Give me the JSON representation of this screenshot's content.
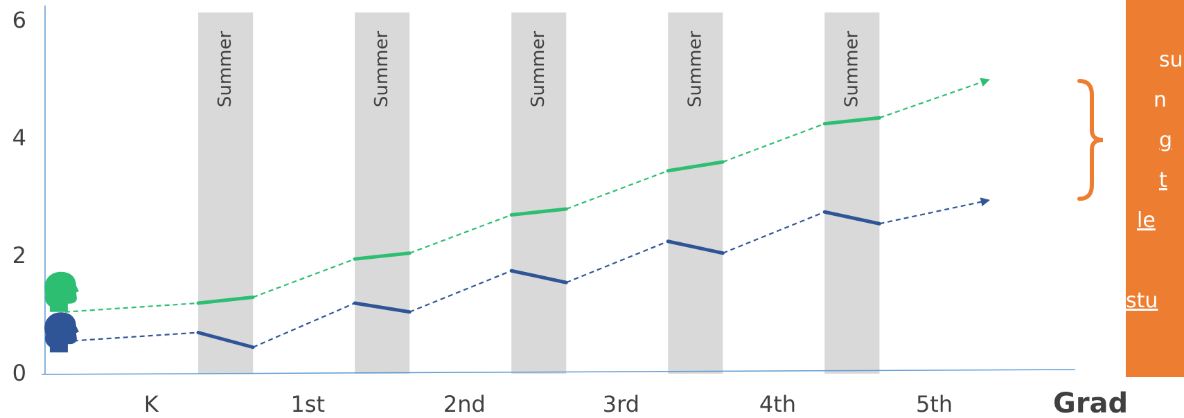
{
  "chart_data": {
    "type": "line",
    "title": "",
    "xlabel": "Grade",
    "ylabel": "",
    "ylim": [
      0,
      6
    ],
    "y_ticks": [
      "0",
      "2",
      "4",
      "6"
    ],
    "categories": [
      "K",
      "1st",
      "2nd",
      "3rd",
      "4th",
      "5th"
    ],
    "band_label": "Summer",
    "summer_bands": [
      {
        "label": "Summer"
      },
      {
        "label": "Summer"
      },
      {
        "label": "Summer"
      },
      {
        "label": "Summer"
      },
      {
        "label": "Summer"
      }
    ],
    "grid": false,
    "series": [
      {
        "color": "#2DBE72",
        "start": [
          0.15,
          1.05
        ],
        "school_year_ends": [
          [
            1.0,
            1.2
          ],
          [
            2.0,
            1.95
          ],
          [
            3.0,
            2.7
          ],
          [
            4.0,
            3.45
          ],
          [
            5.0,
            4.25
          ]
        ],
        "summer_ends": [
          [
            1.35,
            1.3
          ],
          [
            2.35,
            2.05
          ],
          [
            3.35,
            2.8
          ],
          [
            4.35,
            3.6
          ],
          [
            5.35,
            4.35
          ]
        ],
        "projected_end": [
          6.05,
          5.0
        ]
      },
      {
        "color": "#2F5597",
        "start": [
          0.15,
          0.55
        ],
        "school_year_ends": [
          [
            1.0,
            0.7
          ],
          [
            2.0,
            1.2
          ],
          [
            3.0,
            1.75
          ],
          [
            4.0,
            2.25
          ],
          [
            5.0,
            2.75
          ]
        ],
        "summer_ends": [
          [
            1.35,
            0.45
          ],
          [
            2.35,
            1.05
          ],
          [
            3.35,
            1.55
          ],
          [
            4.35,
            2.05
          ],
          [
            5.35,
            2.55
          ]
        ],
        "projected_end": [
          6.05,
          2.95
        ]
      }
    ],
    "annotation": {
      "lines": [
        "su",
        "n",
        "g",
        "t",
        "le",
        "stu"
      ],
      "underlined": [
        false,
        false,
        true,
        true,
        true,
        true
      ],
      "color": "#ED7D31"
    }
  },
  "icons": {
    "green_head": "student-head-icon",
    "blue_head": "student-head-icon"
  }
}
